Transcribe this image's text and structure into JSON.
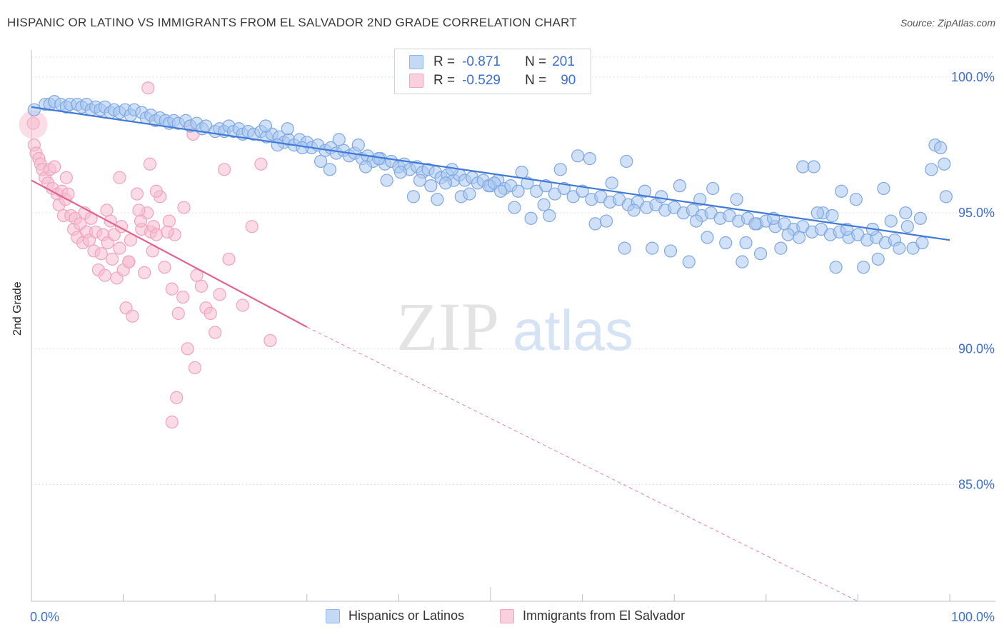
{
  "title": "HISPANIC OR LATINO VS IMMIGRANTS FROM EL SALVADOR 2ND GRADE CORRELATION CHART",
  "source": "Source: ZipAtlas.com",
  "watermark": {
    "zip": "ZIP",
    "atlas": "atlas"
  },
  "legend": {
    "r_label": "R =",
    "n_label": "N =",
    "rows": [
      {
        "r": "-0.871",
        "n": "201",
        "color": "#8fb5ea",
        "fill": "#c5d9f5"
      },
      {
        "r": "-0.529",
        "n": "90",
        "color": "#f0a3bd",
        "fill": "#f9d0de"
      }
    ]
  },
  "bottom_legend": [
    "Hispanics or Latinos",
    "Immigrants from El Salvador"
  ],
  "chart_data": {
    "type": "scatter",
    "title": "HISPANIC OR LATINO VS IMMIGRANTS FROM EL SALVADOR 2ND GRADE CORRELATION CHART",
    "xlabel": "",
    "ylabel": "2nd Grade",
    "xlim": [
      0,
      100
    ],
    "ylim": [
      80.7,
      101.0
    ],
    "x_tick_labels": [
      "0.0%",
      "100.0%"
    ],
    "y_ticks": [
      85,
      90,
      95,
      100
    ],
    "y_tick_labels": [
      "85.0%",
      "90.0%",
      "95.0%",
      "100.0%"
    ],
    "grid": true,
    "legend_position": "top-center",
    "series": [
      {
        "name": "Hispanics or Latinos",
        "color": "#3f7ad8",
        "fill": "#a9c8f0",
        "trend": {
          "x0": 0,
          "y0": 98.9,
          "x1": 100,
          "y1": 94.0
        },
        "points": [
          [
            0.3,
            98.8
          ],
          [
            1.5,
            99.0
          ],
          [
            2.0,
            99.0
          ],
          [
            2.5,
            99.1
          ],
          [
            3.2,
            99.0
          ],
          [
            3.8,
            98.9
          ],
          [
            4.2,
            99.0
          ],
          [
            5.0,
            99.0
          ],
          [
            5.5,
            98.9
          ],
          [
            6.0,
            99.0
          ],
          [
            6.5,
            98.8
          ],
          [
            7.0,
            98.9
          ],
          [
            7.5,
            98.8
          ],
          [
            8.0,
            98.9
          ],
          [
            8.6,
            98.7
          ],
          [
            9.0,
            98.8
          ],
          [
            9.6,
            98.7
          ],
          [
            10.2,
            98.8
          ],
          [
            10.8,
            98.6
          ],
          [
            11.2,
            98.8
          ],
          [
            12.0,
            98.7
          ],
          [
            12.5,
            98.5
          ],
          [
            13.0,
            98.6
          ],
          [
            13.5,
            98.4
          ],
          [
            14.0,
            98.5
          ],
          [
            14.6,
            98.4
          ],
          [
            15.0,
            98.3
          ],
          [
            15.5,
            98.4
          ],
          [
            16.0,
            98.3
          ],
          [
            16.8,
            98.4
          ],
          [
            17.3,
            98.2
          ],
          [
            18.0,
            98.3
          ],
          [
            18.6,
            98.1
          ],
          [
            19.0,
            98.2
          ],
          [
            20.0,
            98.0
          ],
          [
            20.5,
            98.1
          ],
          [
            21.0,
            98.0
          ],
          [
            21.5,
            98.2
          ],
          [
            22.0,
            98.0
          ],
          [
            22.6,
            98.1
          ],
          [
            23.0,
            97.9
          ],
          [
            23.6,
            98.0
          ],
          [
            24.2,
            97.9
          ],
          [
            25.0,
            98.0
          ],
          [
            25.6,
            97.8
          ],
          [
            26.2,
            97.9
          ],
          [
            27.0,
            97.8
          ],
          [
            27.5,
            97.6
          ],
          [
            28.0,
            97.7
          ],
          [
            28.6,
            97.5
          ],
          [
            29.2,
            97.7
          ],
          [
            30.0,
            97.6
          ],
          [
            30.5,
            97.4
          ],
          [
            31.2,
            97.5
          ],
          [
            32.0,
            97.3
          ],
          [
            32.6,
            97.4
          ],
          [
            33.2,
            97.2
          ],
          [
            34.0,
            97.3
          ],
          [
            34.6,
            97.1
          ],
          [
            35.2,
            97.2
          ],
          [
            36.0,
            97.0
          ],
          [
            36.6,
            97.1
          ],
          [
            37.2,
            96.9
          ],
          [
            38.0,
            97.0
          ],
          [
            38.5,
            96.8
          ],
          [
            39.2,
            96.9
          ],
          [
            40.0,
            96.7
          ],
          [
            40.6,
            96.8
          ],
          [
            41.2,
            96.6
          ],
          [
            42.0,
            96.7
          ],
          [
            42.6,
            96.5
          ],
          [
            43.2,
            96.6
          ],
          [
            44.0,
            96.5
          ],
          [
            44.6,
            96.3
          ],
          [
            45.3,
            96.4
          ],
          [
            46.0,
            96.2
          ],
          [
            46.6,
            96.4
          ],
          [
            47.2,
            96.2
          ],
          [
            48.0,
            96.3
          ],
          [
            48.6,
            96.1
          ],
          [
            49.2,
            96.2
          ],
          [
            50.0,
            96.0
          ],
          [
            50.8,
            96.2
          ],
          [
            51.5,
            95.9
          ],
          [
            52.2,
            96.0
          ],
          [
            53.0,
            95.8
          ],
          [
            54.0,
            96.1
          ],
          [
            55.0,
            95.8
          ],
          [
            56.0,
            96.0
          ],
          [
            57.0,
            95.7
          ],
          [
            58.0,
            95.9
          ],
          [
            59.0,
            95.6
          ],
          [
            60.0,
            95.8
          ],
          [
            61.0,
            95.5
          ],
          [
            62.0,
            95.6
          ],
          [
            63.0,
            95.4
          ],
          [
            64.0,
            95.5
          ],
          [
            65.0,
            95.3
          ],
          [
            66.0,
            95.4
          ],
          [
            67.0,
            95.2
          ],
          [
            68.0,
            95.3
          ],
          [
            69.0,
            95.1
          ],
          [
            70.0,
            95.2
          ],
          [
            71.0,
            95.0
          ],
          [
            72.0,
            95.1
          ],
          [
            73.0,
            94.9
          ],
          [
            74.0,
            95.0
          ],
          [
            75.0,
            94.8
          ],
          [
            76.0,
            94.9
          ],
          [
            77.0,
            94.7
          ],
          [
            78.0,
            94.8
          ],
          [
            79.0,
            94.6
          ],
          [
            80.0,
            94.7
          ],
          [
            81.0,
            94.5
          ],
          [
            82.0,
            94.6
          ],
          [
            83.0,
            94.4
          ],
          [
            84.0,
            94.5
          ],
          [
            85.0,
            94.3
          ],
          [
            86.0,
            94.4
          ],
          [
            87.0,
            94.2
          ],
          [
            88.0,
            94.3
          ],
          [
            89.0,
            94.1
          ],
          [
            90.0,
            94.2
          ],
          [
            91.0,
            94.0
          ],
          [
            92.0,
            94.1
          ],
          [
            93.0,
            93.9
          ],
          [
            94.0,
            94.0
          ],
          [
            25.5,
            98.2
          ],
          [
            33.5,
            97.7
          ],
          [
            37.8,
            97.0
          ],
          [
            40.2,
            96.5
          ],
          [
            43.5,
            96.0
          ],
          [
            45.8,
            96.6
          ],
          [
            46.8,
            95.6
          ],
          [
            49.8,
            96.0
          ],
          [
            52.6,
            95.2
          ],
          [
            53.4,
            96.5
          ],
          [
            55.8,
            95.3
          ],
          [
            57.6,
            96.6
          ],
          [
            59.5,
            97.1
          ],
          [
            60.8,
            97.0
          ],
          [
            63.2,
            96.1
          ],
          [
            64.8,
            96.9
          ],
          [
            66.8,
            95.8
          ],
          [
            68.6,
            95.6
          ],
          [
            70.6,
            96.0
          ],
          [
            72.4,
            94.7
          ],
          [
            72.8,
            95.5
          ],
          [
            74.2,
            95.9
          ],
          [
            76.8,
            95.5
          ],
          [
            77.8,
            93.9
          ],
          [
            78.8,
            94.6
          ],
          [
            80.8,
            94.8
          ],
          [
            81.6,
            93.7
          ],
          [
            82.4,
            94.2
          ],
          [
            84.0,
            96.7
          ],
          [
            85.2,
            96.7
          ],
          [
            86.2,
            95.0
          ],
          [
            87.2,
            94.9
          ],
          [
            88.2,
            95.8
          ],
          [
            89.8,
            95.5
          ],
          [
            90.6,
            93.0
          ],
          [
            91.6,
            94.4
          ],
          [
            92.2,
            93.3
          ],
          [
            92.8,
            95.9
          ],
          [
            93.6,
            94.7
          ],
          [
            95.4,
            94.5
          ],
          [
            96.0,
            93.7
          ],
          [
            97.0,
            93.9
          ],
          [
            98.0,
            96.6
          ],
          [
            98.4,
            97.5
          ],
          [
            99.0,
            97.4
          ],
          [
            99.4,
            96.8
          ],
          [
            99.6,
            95.6
          ],
          [
            26.8,
            97.5
          ],
          [
            27.9,
            98.1
          ],
          [
            29.5,
            97.4
          ],
          [
            31.5,
            96.9
          ],
          [
            32.5,
            96.6
          ],
          [
            35.6,
            97.5
          ],
          [
            36.4,
            96.7
          ],
          [
            38.7,
            96.2
          ],
          [
            41.6,
            95.6
          ],
          [
            42.3,
            96.2
          ],
          [
            44.2,
            95.5
          ],
          [
            45.1,
            96.1
          ],
          [
            47.7,
            95.7
          ],
          [
            50.4,
            96.1
          ],
          [
            51.1,
            95.8
          ],
          [
            54.4,
            94.8
          ],
          [
            56.4,
            94.9
          ],
          [
            61.4,
            94.6
          ],
          [
            62.6,
            94.7
          ],
          [
            64.6,
            93.7
          ],
          [
            65.6,
            95.1
          ],
          [
            67.6,
            93.7
          ],
          [
            69.6,
            93.6
          ],
          [
            71.6,
            93.2
          ],
          [
            73.6,
            94.1
          ],
          [
            75.6,
            93.9
          ],
          [
            77.4,
            93.2
          ],
          [
            79.4,
            93.5
          ],
          [
            83.6,
            94.1
          ],
          [
            85.6,
            95.0
          ],
          [
            87.6,
            93.0
          ],
          [
            88.8,
            94.4
          ],
          [
            94.5,
            93.7
          ],
          [
            95.2,
            95.0
          ],
          [
            96.8,
            94.8
          ]
        ]
      },
      {
        "name": "Immigrants from El Salvador",
        "color": "#e2648c",
        "fill": "#f6bcd0",
        "trend": {
          "x0": 0,
          "y0": 96.2,
          "x1": 30,
          "y1": 90.8
        },
        "trend_extension": {
          "x0": 30,
          "y0": 90.8,
          "x1": 90,
          "y1": 80.7
        },
        "points": [
          [
            0.2,
            98.3
          ],
          [
            0.3,
            97.5
          ],
          [
            0.5,
            97.2
          ],
          [
            0.8,
            97.0
          ],
          [
            1.0,
            96.8
          ],
          [
            1.2,
            96.6
          ],
          [
            1.5,
            96.3
          ],
          [
            1.8,
            96.1
          ],
          [
            2.0,
            96.6
          ],
          [
            2.3,
            95.9
          ],
          [
            2.5,
            96.7
          ],
          [
            2.8,
            95.7
          ],
          [
            3.0,
            95.3
          ],
          [
            3.3,
            95.8
          ],
          [
            3.5,
            94.9
          ],
          [
            3.7,
            95.5
          ],
          [
            4.0,
            95.7
          ],
          [
            4.3,
            94.9
          ],
          [
            4.6,
            94.4
          ],
          [
            4.8,
            94.8
          ],
          [
            5.0,
            94.1
          ],
          [
            5.3,
            94.6
          ],
          [
            5.6,
            93.9
          ],
          [
            5.8,
            95.0
          ],
          [
            6.0,
            94.3
          ],
          [
            6.3,
            94.0
          ],
          [
            6.5,
            94.8
          ],
          [
            6.8,
            93.6
          ],
          [
            7.0,
            94.3
          ],
          [
            7.3,
            92.9
          ],
          [
            7.6,
            93.5
          ],
          [
            7.8,
            94.2
          ],
          [
            8.0,
            92.7
          ],
          [
            8.3,
            93.9
          ],
          [
            8.6,
            94.7
          ],
          [
            8.8,
            93.3
          ],
          [
            9.0,
            94.2
          ],
          [
            9.3,
            92.6
          ],
          [
            9.6,
            93.7
          ],
          [
            9.8,
            94.5
          ],
          [
            10.0,
            92.9
          ],
          [
            10.3,
            91.5
          ],
          [
            10.6,
            93.2
          ],
          [
            10.8,
            94.0
          ],
          [
            11.0,
            91.2
          ],
          [
            11.5,
            95.7
          ],
          [
            12.0,
            94.4
          ],
          [
            12.3,
            92.8
          ],
          [
            12.6,
            95.0
          ],
          [
            13.0,
            94.3
          ],
          [
            13.3,
            94.5
          ],
          [
            13.6,
            94.2
          ],
          [
            14.0,
            95.6
          ],
          [
            14.5,
            93.0
          ],
          [
            15.0,
            94.7
          ],
          [
            15.3,
            92.2
          ],
          [
            15.6,
            94.2
          ],
          [
            16.0,
            91.3
          ],
          [
            16.5,
            91.9
          ],
          [
            17.0,
            90.0
          ],
          [
            17.3,
            98.2
          ],
          [
            17.6,
            97.9
          ],
          [
            18.0,
            92.7
          ],
          [
            18.5,
            92.3
          ],
          [
            19.0,
            91.5
          ],
          [
            19.5,
            91.3
          ],
          [
            20.0,
            90.6
          ],
          [
            20.5,
            92.0
          ],
          [
            21.0,
            96.6
          ],
          [
            21.5,
            93.3
          ],
          [
            23.0,
            91.6
          ],
          [
            24.0,
            94.5
          ],
          [
            25.0,
            96.8
          ],
          [
            26.0,
            90.3
          ],
          [
            12.7,
            99.6
          ],
          [
            3.8,
            96.3
          ],
          [
            9.6,
            96.3
          ],
          [
            11.7,
            95.1
          ],
          [
            15.8,
            88.2
          ],
          [
            17.8,
            89.3
          ],
          [
            15.3,
            87.3
          ],
          [
            14.8,
            94.3
          ],
          [
            13.2,
            93.6
          ],
          [
            16.6,
            95.2
          ],
          [
            12.9,
            96.8
          ],
          [
            13.6,
            95.8
          ],
          [
            8.2,
            95.1
          ],
          [
            10.6,
            93.2
          ],
          [
            11.9,
            94.7
          ]
        ]
      }
    ]
  }
}
